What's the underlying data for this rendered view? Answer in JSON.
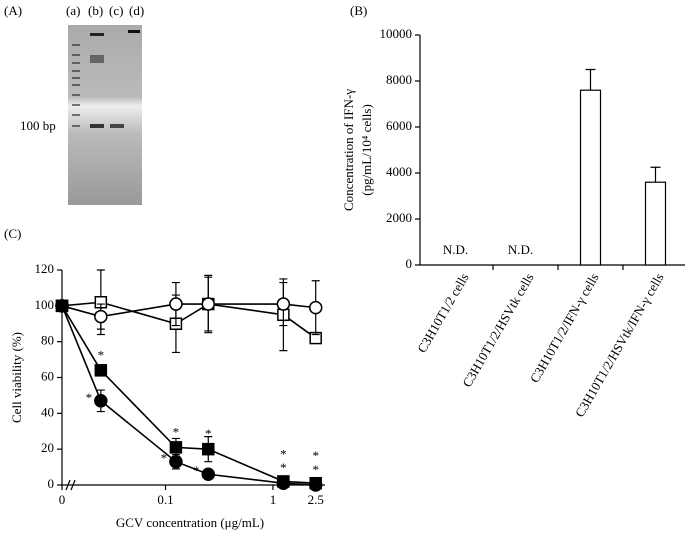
{
  "gel": {
    "label": "(A)",
    "lane_labels": [
      "(a)",
      "(b)",
      "(c)",
      "(d)"
    ],
    "marker_label": "100 bp"
  },
  "chart_data": [
    {
      "type": "bar",
      "label": "(B)",
      "y_label": [
        "Concentration of IFN-γ",
        "(pg/mL/10⁴ cells)"
      ],
      "categories": [
        "C3H10T1/2 cells",
        "C3H10T1/2/HSVtk cells",
        "C3H10T1/2/IFN-γ cells",
        "C3H10T1/2/HSVtk/IFN-γ cells"
      ],
      "values": [
        null,
        null,
        7600,
        3600
      ],
      "errors": [
        null,
        null,
        900,
        650
      ],
      "value_labels": [
        "N.D.",
        "N.D.",
        null,
        null
      ],
      "color": "#ffffff",
      "ylim": [
        0,
        10000
      ],
      "yticks": [
        0,
        2000,
        4000,
        6000,
        8000,
        10000
      ]
    },
    {
      "type": "line",
      "label": "(C)",
      "x_label": "GCV concentration (μg/mL)",
      "y_label": "Cell viability (%)",
      "x": [
        0,
        0.025,
        0.125,
        0.25,
        1.25,
        2.5
      ],
      "xscale": "log",
      "axis_break": true,
      "xlim": [
        0.015,
        2.8
      ],
      "xticks": [
        0,
        0.1,
        1,
        2.5
      ],
      "ylim": [
        0,
        120
      ],
      "yticks": [
        0,
        20,
        40,
        60,
        80,
        100,
        120
      ],
      "series": [
        {
          "marker": "square",
          "color": "#000000",
          "fill": "#ffffff",
          "values": [
            100,
            102,
            90,
            101,
            95,
            82
          ],
          "errors": [
            3,
            18,
            16,
            16,
            20,
            0
          ]
        },
        {
          "marker": "circle",
          "color": "#000000",
          "fill": "#ffffff",
          "values": [
            100,
            94,
            101,
            101,
            101,
            99
          ],
          "errors": [
            3,
            7,
            12,
            15,
            12,
            15
          ]
        },
        {
          "marker": "square",
          "color": "#000000",
          "fill": "#000000",
          "values": [
            100,
            64,
            21,
            20,
            2,
            1
          ],
          "errors": [
            3,
            3,
            5,
            7,
            2,
            1
          ],
          "significance": [
            null,
            "*",
            "*",
            "*",
            "*",
            "*"
          ]
        },
        {
          "marker": "circle",
          "color": "#000000",
          "fill": "#000000",
          "values": [
            100,
            47,
            13,
            6,
            1,
            0
          ],
          "errors": [
            3,
            6,
            4,
            1,
            1,
            1
          ],
          "significance": [
            null,
            "*",
            "*",
            "*",
            "*",
            "*"
          ]
        }
      ]
    }
  ]
}
